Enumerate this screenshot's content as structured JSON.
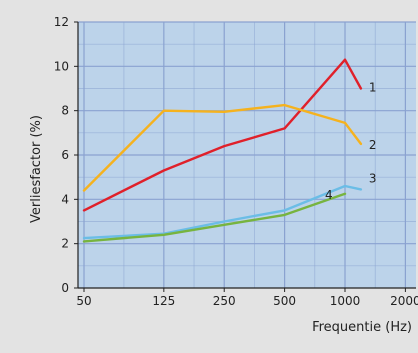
{
  "chart_data": {
    "type": "line",
    "xlabel": "Frequentie (Hz)",
    "ylabel": "Verliesfactor (%)",
    "x_scale": "log",
    "x_ticks": [
      50,
      125,
      250,
      500,
      1000,
      2000
    ],
    "x_tick_labels": [
      "50",
      "125",
      "250",
      "500",
      "1000",
      "2000"
    ],
    "xlim": [
      50,
      2000
    ],
    "ylim": [
      0,
      12
    ],
    "y_ticks": [
      0,
      2,
      4,
      6,
      8,
      10,
      12
    ],
    "y_tick_labels": [
      "0",
      "2",
      "4",
      "6",
      "8",
      "10",
      "12"
    ],
    "grid": true,
    "background": "#bcd3ea",
    "gridline_color": "#8aa2d0",
    "series": [
      {
        "label": "1",
        "color": "#e0202a",
        "x": [
          50,
          125,
          250,
          500,
          1000,
          1200
        ],
        "y": [
          3.5,
          5.3,
          6.4,
          7.2,
          10.3,
          9.0
        ]
      },
      {
        "label": "2",
        "color": "#f5b21e",
        "x": [
          50,
          125,
          250,
          500,
          1000,
          1200
        ],
        "y": [
          4.4,
          8.0,
          7.95,
          8.25,
          7.45,
          6.5
        ]
      },
      {
        "label": "3",
        "color": "#6bbde6",
        "x": [
          50,
          125,
          250,
          500,
          1000,
          1200
        ],
        "y": [
          2.25,
          2.45,
          3.0,
          3.5,
          4.6,
          4.45
        ]
      },
      {
        "label": "4",
        "color": "#77b43f",
        "x": [
          50,
          125,
          250,
          500,
          1000
        ],
        "y": [
          2.1,
          2.4,
          2.85,
          3.3,
          4.25
        ]
      }
    ]
  }
}
